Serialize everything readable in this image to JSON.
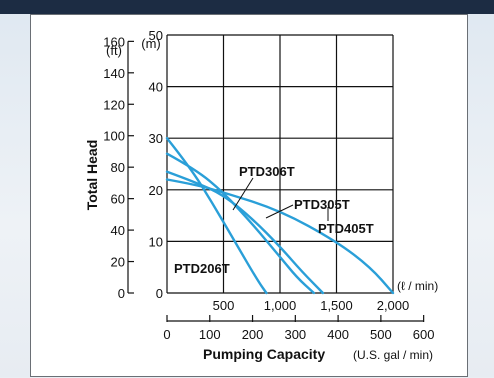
{
  "chart_data": {
    "type": "line",
    "ylabel": "Total Head",
    "y_ft_unit": "(ft)",
    "y_m_unit": "(m)",
    "y_ft_ticks": [
      "160",
      "140",
      "120",
      "100",
      "80",
      "60",
      "40",
      "20",
      "0"
    ],
    "y_m_ticks": [
      "50",
      "40",
      "30",
      "20",
      "10",
      "0"
    ],
    "ylim_m": [
      0,
      50
    ],
    "x_lmin_ticks": [
      "500",
      "1,000",
      "1,500",
      "2,000"
    ],
    "x_lmin_unit": "(ℓ / min)",
    "x_gal_ticks": [
      "0",
      "100",
      "200",
      "300",
      "400",
      "500",
      "600"
    ],
    "xlabel": "Pumping Capacity",
    "xlabel_unit": "(U.S. gal / min)",
    "xlim_lmin": [
      0,
      2000
    ],
    "grid": true,
    "series": [
      {
        "name": "PTD306T",
        "x_lmin": [
          0,
          250,
          500,
          750,
          1000,
          1200,
          1380
        ],
        "y_m": [
          23.5,
          21.5,
          19,
          14.5,
          9,
          4,
          0
        ]
      },
      {
        "name": "PTD305T",
        "x_lmin": [
          0,
          250,
          500,
          750,
          1000,
          1150,
          1300
        ],
        "y_m": [
          27,
          24,
          19.5,
          13.5,
          7,
          3,
          0
        ]
      },
      {
        "name": "PTD405T",
        "x_lmin": [
          0,
          250,
          500,
          1000,
          1500,
          1800,
          2000
        ],
        "y_m": [
          22,
          21,
          19.5,
          16,
          10,
          5,
          0
        ]
      },
      {
        "name": "PTD206T",
        "x_lmin": [
          0,
          200,
          400,
          600,
          800,
          880
        ],
        "y_m": [
          30,
          24.5,
          17.5,
          10,
          2.5,
          0
        ]
      }
    ]
  },
  "colors": {
    "curve": "#2a9fd8",
    "grid": "#111111",
    "top_band": "#1c2c43"
  }
}
